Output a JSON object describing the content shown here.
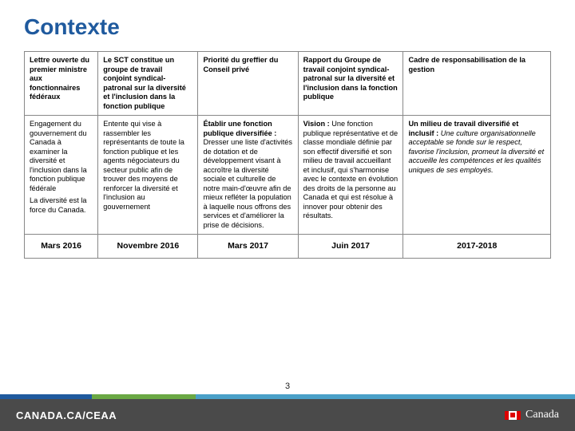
{
  "title": "Contexte",
  "columns": [
    "col1",
    "col2",
    "col3",
    "col4",
    "col5"
  ],
  "row_header": [
    "Lettre ouverte du premier ministre aux fonctionnaires fédéraux",
    "Le SCT constitue un groupe de travail conjoint syndical-patronal sur la diversité et l'inclusion dans la fonction publique",
    "Priorité du greffier du Conseil privé",
    "Rapport du Groupe de travail conjoint syndical-patronal sur la diversité et l'inclusion dans la fonction publique",
    "Cadre de responsabilisation de la gestion"
  ],
  "row_body": {
    "c1p1": "Engagement du gouvernement du Canada à examiner la diversité et l'inclusion dans la fonction publique fédérale",
    "c1p2": "La diversité est la force du Canada.",
    "c2": "Entente qui vise à rassembler les représentants de toute la fonction publique et les agents négociateurs du secteur public afin de trouver des moyens de renforcer la diversité et l'inclusion au gouvernement",
    "c3b": "Établir une fonction publique diversifiée :",
    "c3t": " Dresser une liste d'activités de dotation et de développement visant à accroître la diversité sociale et culturelle de notre main-d'œuvre afin de mieux refléter la population à laquelle nous offrons des services et d'améliorer la prise de décisions.",
    "c4b": "Vision :",
    "c4t": " Une fonction publique représentative et de classe mondiale définie par son effectif diversifié et son milieu de travail accueillant et inclusif, qui s'harmonise avec le contexte en évolution des droits de la personne au Canada et qui est résolue à innover pour obtenir des résultats.",
    "c5b": "Un milieu de travail diversifié et inclusif :",
    "c5t": " Une culture organisationnelle acceptable se fonde sur le respect, favorise l'inclusion, promeut la diversité et accueille les compétences et les qualités uniques de ses employés."
  },
  "row_dates": [
    "Mars 2016",
    "Novembre 2016",
    "Mars 2017",
    "Juin 2017",
    "2017-2018"
  ],
  "page_number": "3",
  "footer_left": "CANADA.CA/CEAA",
  "footer_right": "Canada",
  "colors": {
    "title": "#1f5a9e",
    "border": "#888888",
    "stripe_blue": "#1f5a9e",
    "stripe_green": "#6aa844",
    "stripe_teal": "#4aa0c8",
    "footer_bg": "#4a4a4a"
  }
}
